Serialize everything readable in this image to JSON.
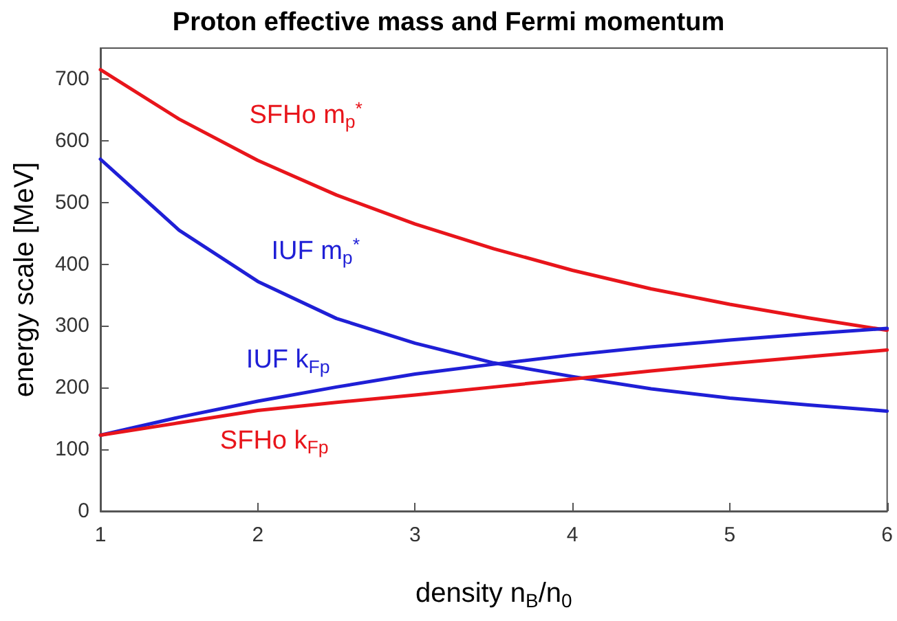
{
  "chart_data": {
    "type": "line",
    "title": "Proton effective mass and Fermi momentum",
    "xlabel": "density n$_{B}$/n$_{0}$",
    "ylabel": "energy scale [MeV]",
    "x": [
      1,
      1.5,
      2,
      2.5,
      3,
      3.5,
      4,
      4.5,
      5,
      5.5,
      6
    ],
    "series": [
      {
        "name": "SFHo m$_{p}$$^{*}$",
        "color": "#e8151b",
        "values": [
          715,
          635,
          568,
          512,
          465,
          425,
          390,
          360,
          335,
          313,
          293
        ]
      },
      {
        "name": "IUF m$_{p}$$^{*}$",
        "color": "#1f1fd6",
        "values": [
          570,
          455,
          372,
          312,
          272,
          240,
          218,
          198,
          183,
          172,
          162
        ]
      },
      {
        "name": "IUF k$_{Fp}$",
        "color": "#1f1fd6",
        "values": [
          123,
          152,
          178,
          201,
          222,
          238,
          253,
          266,
          277,
          287,
          296
        ]
      },
      {
        "name": "SFHo k$_{Fp}$",
        "color": "#e8151b",
        "values": [
          123,
          143,
          163,
          176,
          188,
          201,
          214,
          227,
          239,
          250,
          261
        ]
      }
    ],
    "xlim": [
      1,
      6
    ],
    "xticks": [
      1,
      2,
      3,
      4,
      5,
      6
    ],
    "ylim": [
      0,
      750
    ],
    "yticks": [
      0,
      100,
      200,
      300,
      400,
      500,
      600,
      700
    ],
    "grid": false,
    "legend": false,
    "marker": "none",
    "line_style": "solid"
  }
}
